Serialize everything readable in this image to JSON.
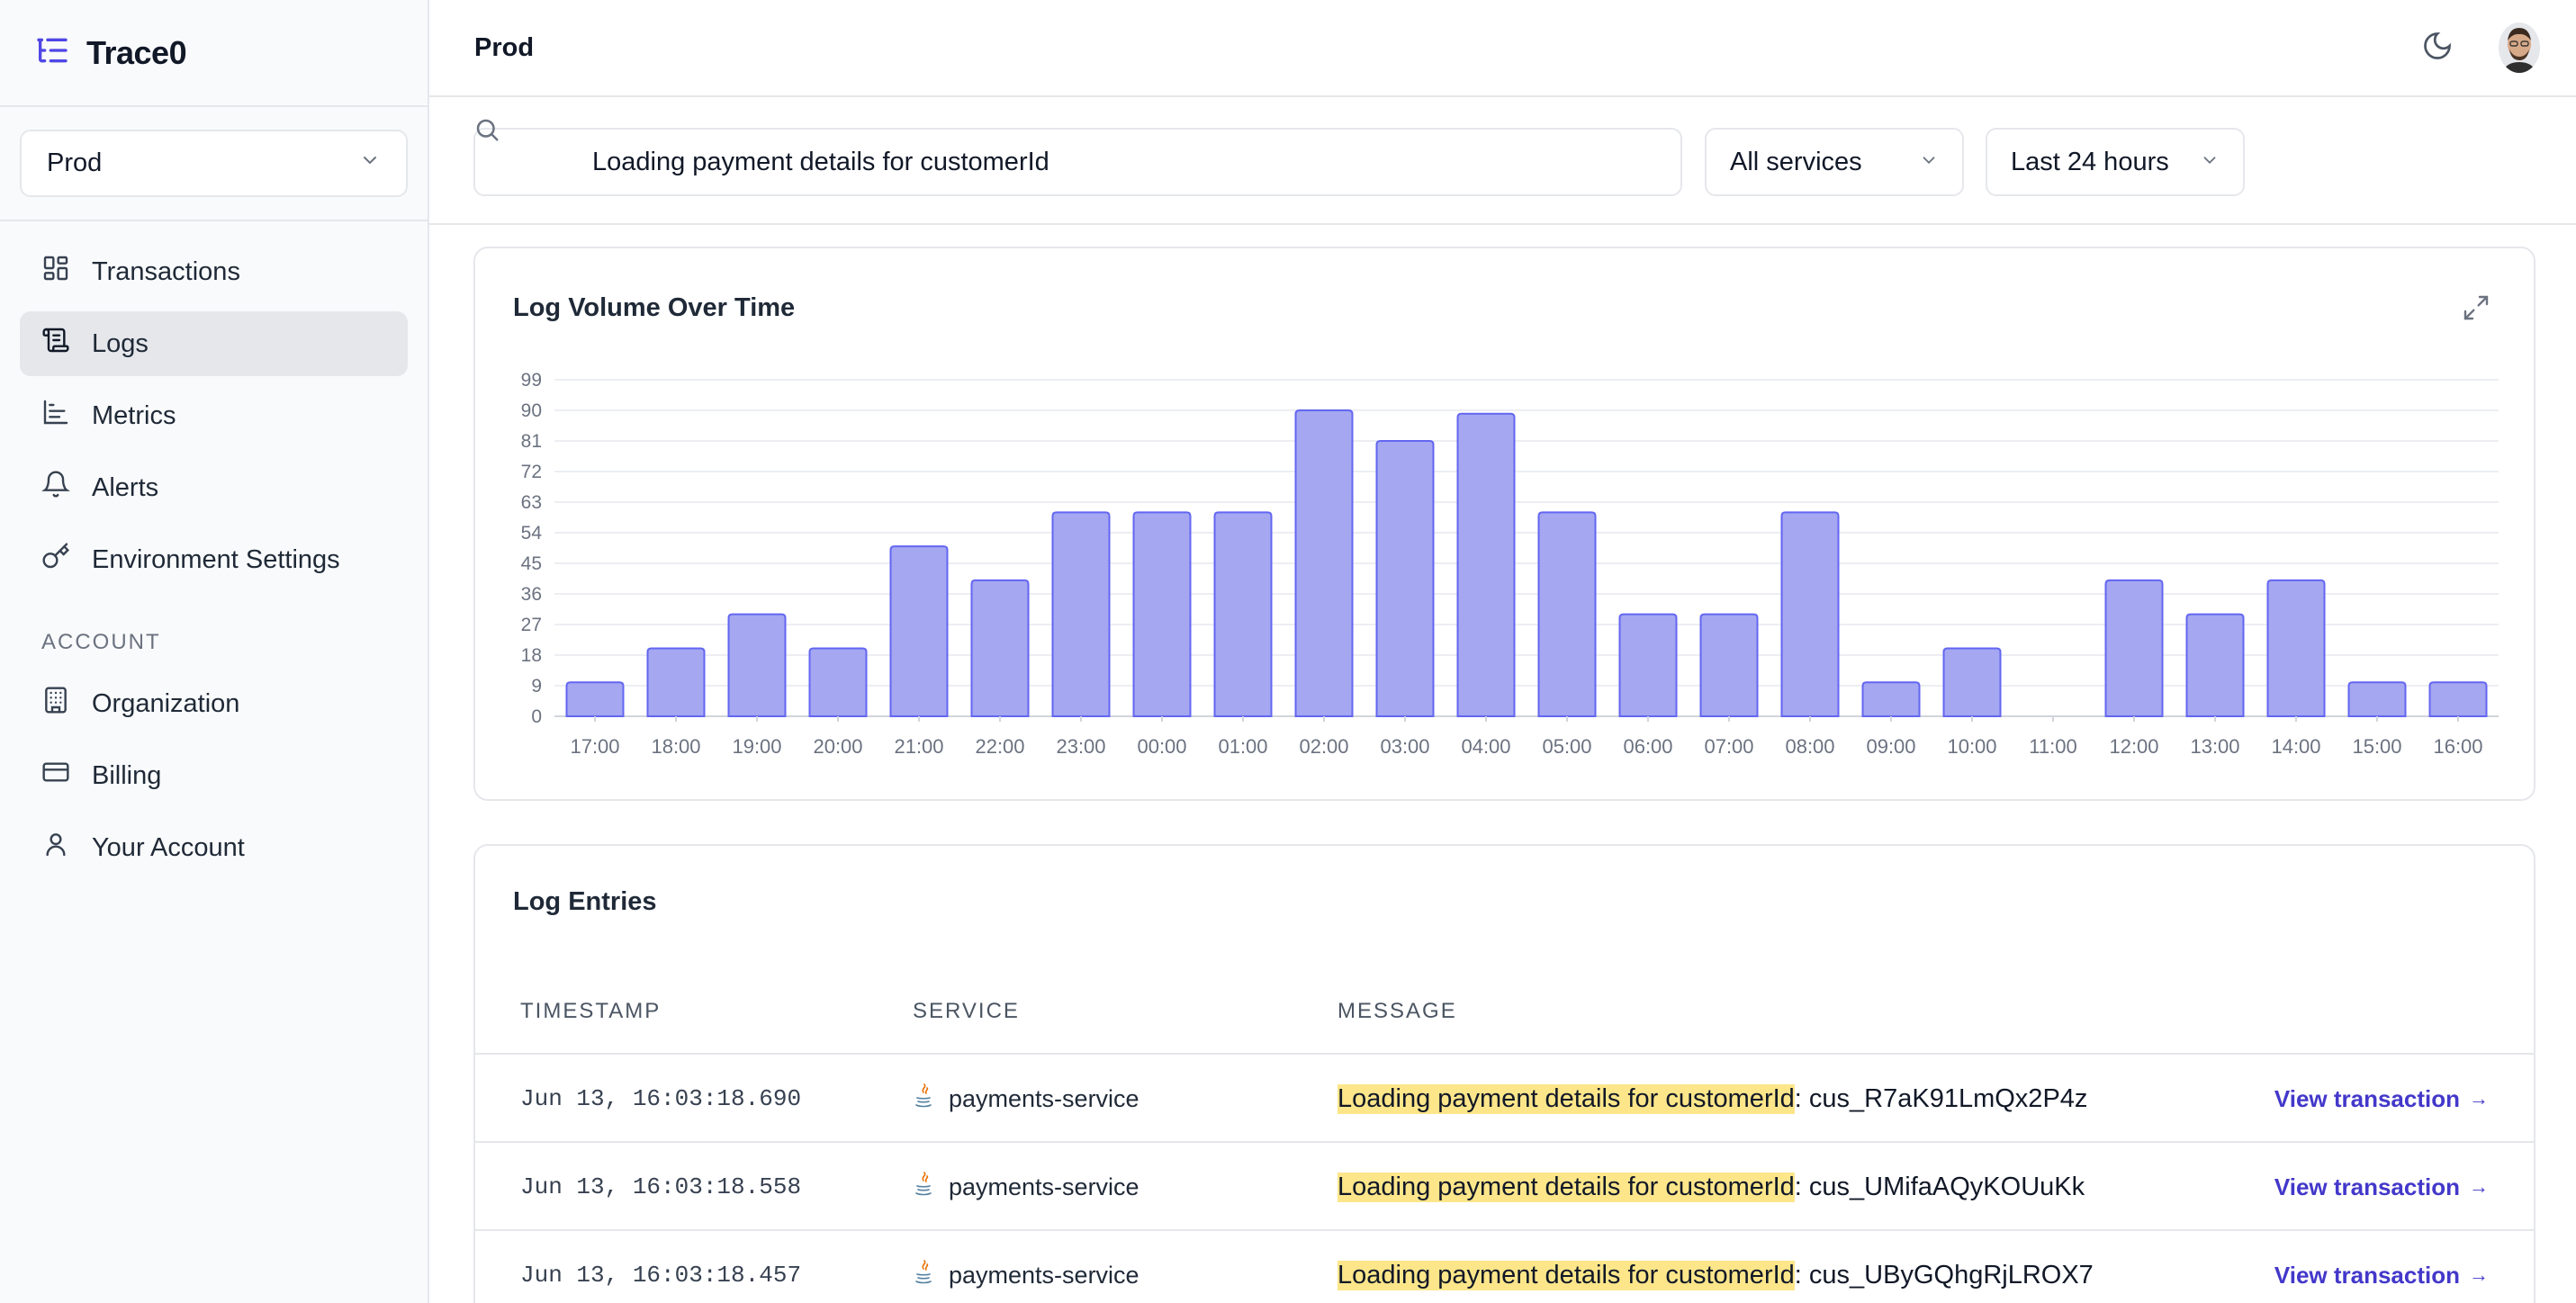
{
  "app": {
    "name": "Trace0"
  },
  "environment": {
    "selected": "Prod"
  },
  "nav": {
    "items": [
      {
        "label": "Transactions",
        "icon": "dashboard-icon",
        "active": false
      },
      {
        "label": "Logs",
        "icon": "logs-icon",
        "active": true
      },
      {
        "label": "Metrics",
        "icon": "chart-icon",
        "active": false
      },
      {
        "label": "Alerts",
        "icon": "bell-icon",
        "active": false
      },
      {
        "label": "Environment Settings",
        "icon": "key-icon",
        "active": false
      }
    ],
    "account_section": "ACCOUNT",
    "account_items": [
      {
        "label": "Organization",
        "icon": "building-icon"
      },
      {
        "label": "Billing",
        "icon": "credit-card-icon"
      },
      {
        "label": "Your Account",
        "icon": "user-icon"
      }
    ]
  },
  "topbar": {
    "title": "Prod"
  },
  "filters": {
    "search_value": "Loading payment details for customerId",
    "service": "All services",
    "time_range": "Last 24 hours"
  },
  "chart_card": {
    "title": "Log Volume Over Time"
  },
  "chart_data": {
    "type": "bar",
    "title": "Log Volume Over Time",
    "categories": [
      "17:00",
      "18:00",
      "19:00",
      "20:00",
      "21:00",
      "22:00",
      "23:00",
      "00:00",
      "01:00",
      "02:00",
      "03:00",
      "04:00",
      "05:00",
      "06:00",
      "07:00",
      "08:00",
      "09:00",
      "10:00",
      "11:00",
      "12:00",
      "13:00",
      "14:00",
      "15:00",
      "16:00"
    ],
    "values": [
      10,
      20,
      30,
      20,
      50,
      40,
      60,
      60,
      60,
      90,
      81,
      89,
      60,
      30,
      30,
      60,
      10,
      20,
      0,
      40,
      30,
      40,
      10,
      10
    ],
    "yticks": [
      0,
      9,
      18,
      27,
      36,
      45,
      54,
      63,
      72,
      81,
      90,
      99
    ],
    "ylim": [
      0,
      99
    ],
    "grid": true,
    "bar_color": "#a5a7f1",
    "bar_stroke": "#6366f1"
  },
  "log_card": {
    "title": "Log Entries",
    "columns": [
      "TIMESTAMP",
      "SERVICE",
      "MESSAGE"
    ],
    "rows": [
      {
        "timestamp": "Jun 13, 16:03:18.690",
        "service": "payments-service",
        "highlight": "Loading payment details for customerId",
        "rest": ": cus_R7aK91LmQx2P4z",
        "link": "View transaction"
      },
      {
        "timestamp": "Jun 13, 16:03:18.558",
        "service": "payments-service",
        "highlight": "Loading payment details for customerId",
        "rest": ": cus_UMifaAQyKOUuKk",
        "link": "View transaction"
      },
      {
        "timestamp": "Jun 13, 16:03:18.457",
        "service": "payments-service",
        "highlight": "Loading payment details for customerId",
        "rest": ": cus_UByGQhgRjLROX7",
        "link": "View transaction"
      }
    ]
  },
  "colors": {
    "accent": "#4338ca",
    "highlight": "#fde68a",
    "active_nav": "#e5e7eb"
  }
}
